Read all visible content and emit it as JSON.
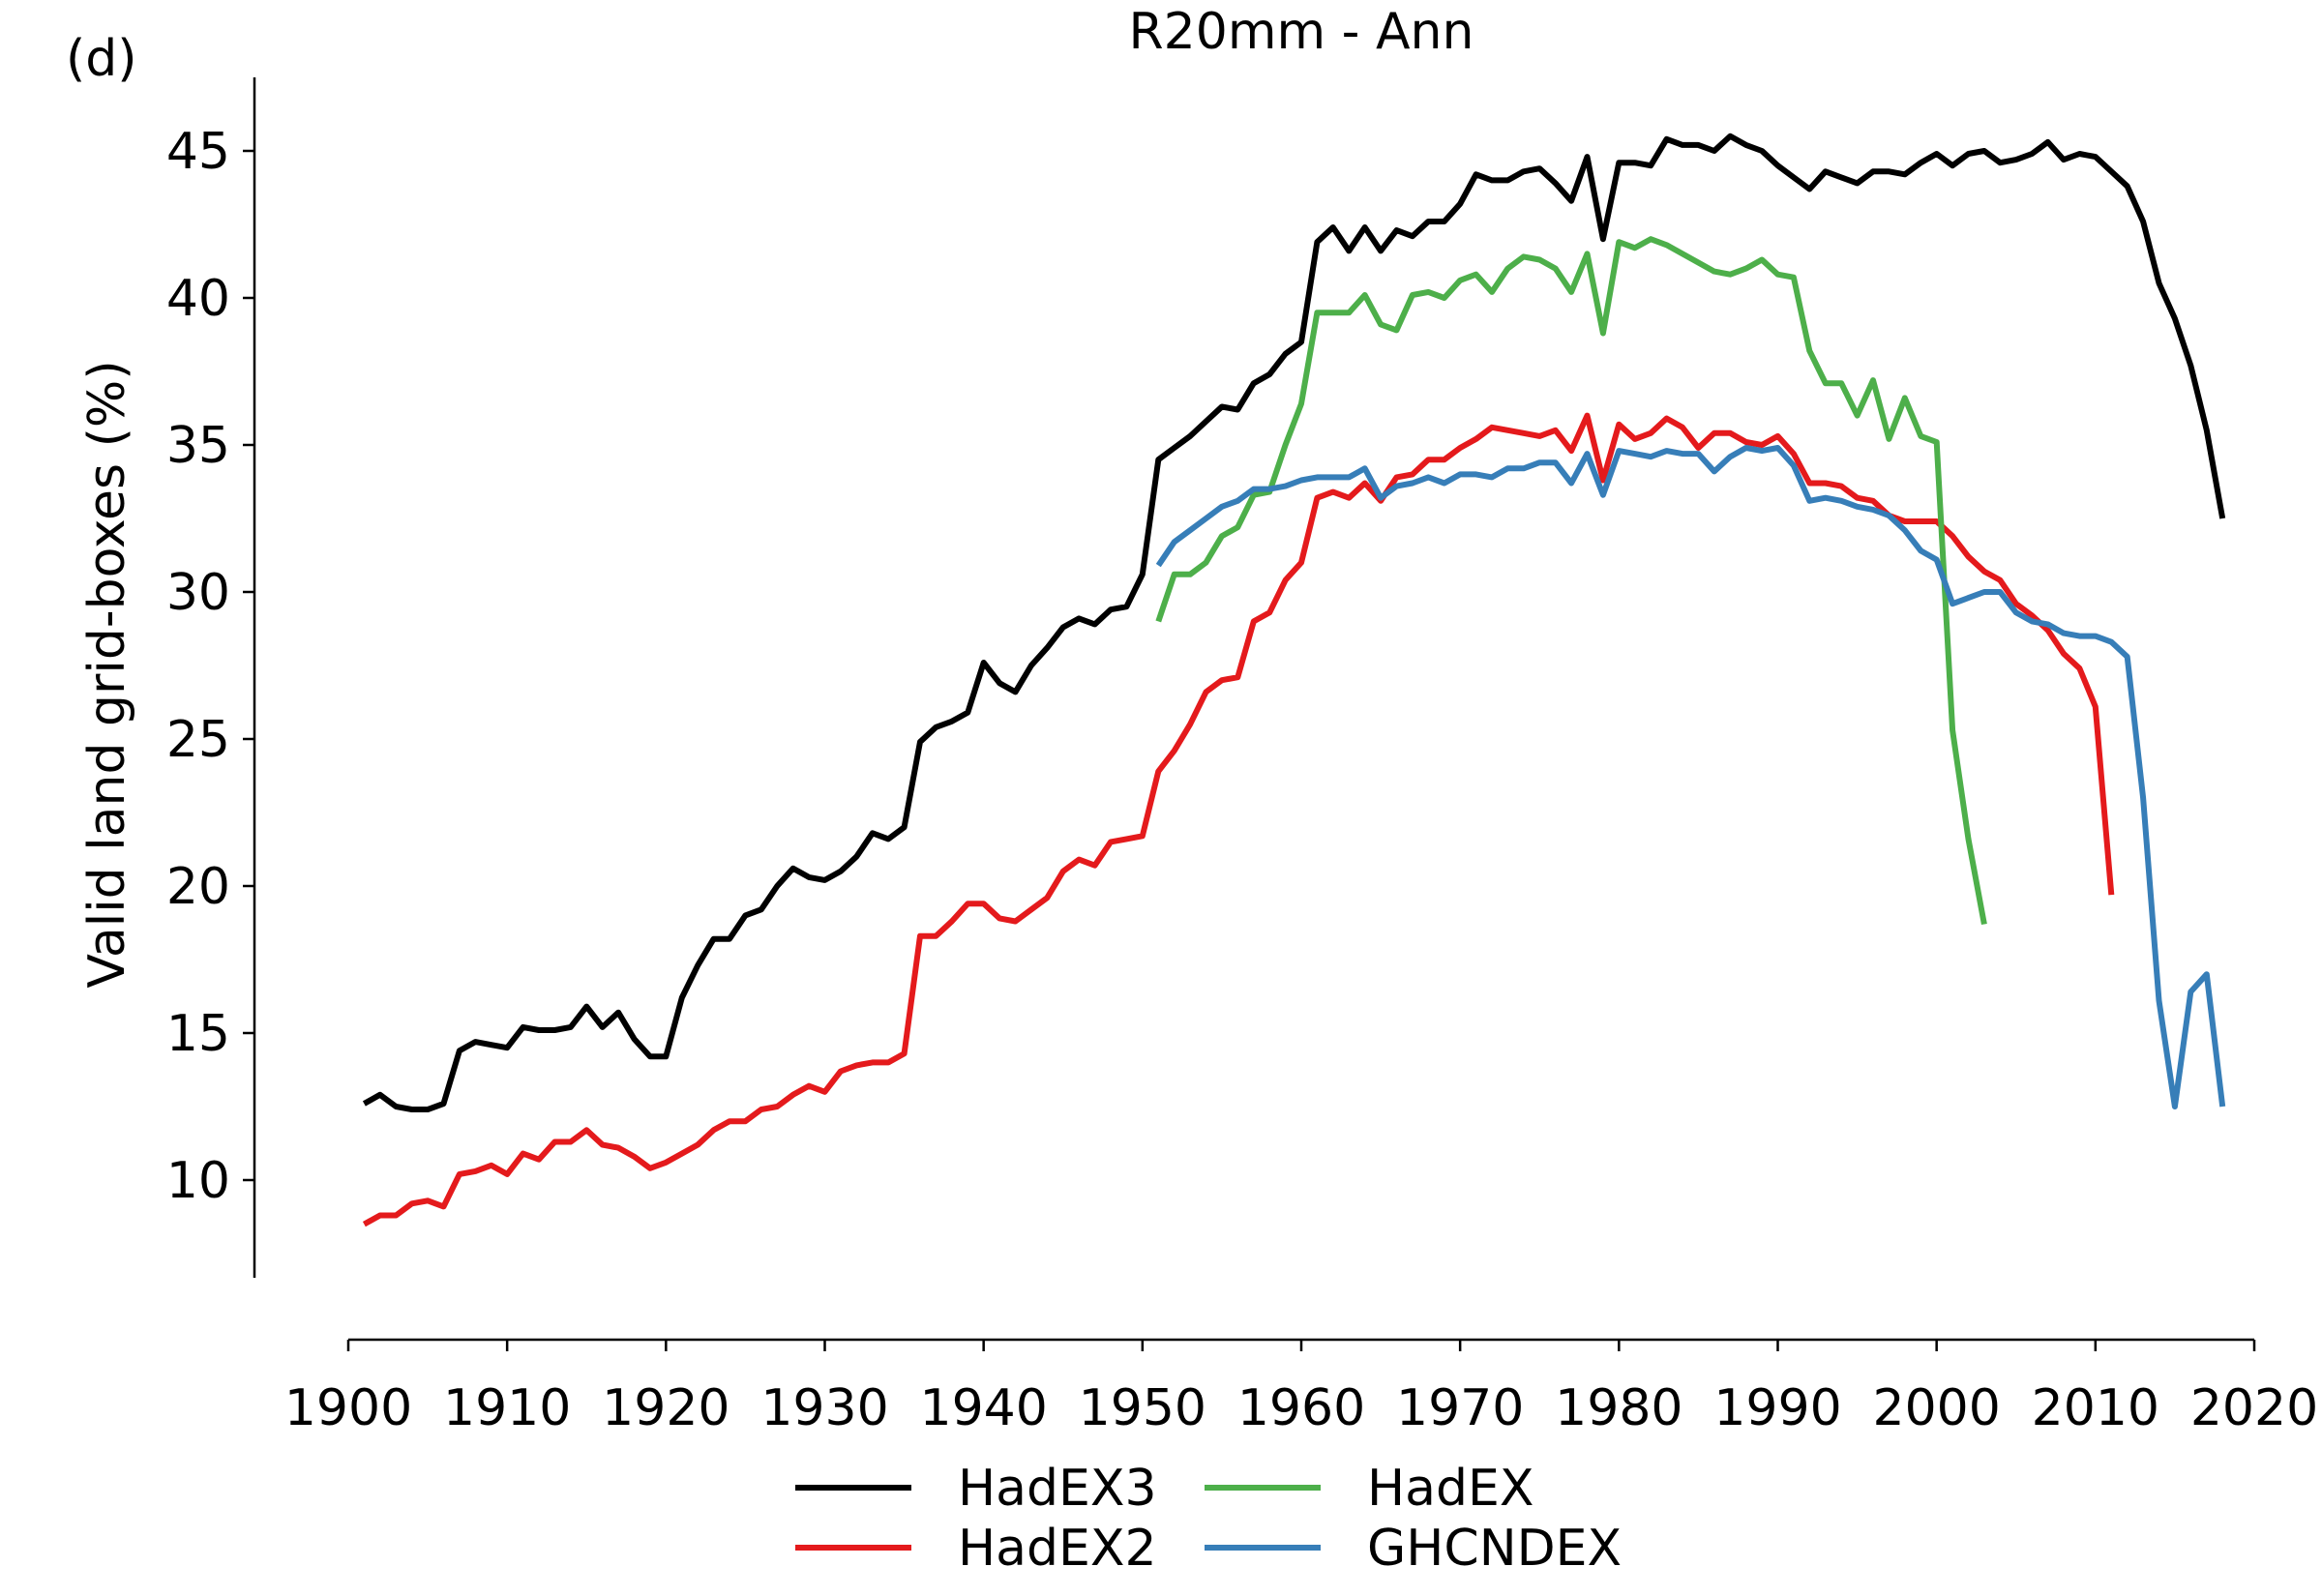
{
  "panel_label": "(d)",
  "chart_data": {
    "type": "line",
    "title": "R20mm - Ann",
    "xlabel": "",
    "ylabel": "Valid land grid-boxes (%)",
    "xlim": [
      1900,
      2020
    ],
    "ylim": [
      7,
      47
    ],
    "x_ticks": [
      1900,
      1910,
      1920,
      1930,
      1940,
      1950,
      1960,
      1970,
      1980,
      1990,
      2000,
      2010,
      2020
    ],
    "y_ticks": [
      10,
      15,
      20,
      25,
      30,
      35,
      40,
      45
    ],
    "grid": false,
    "legend_position": "bottom-center",
    "series": [
      {
        "name": "HadEX3",
        "color": "#000000",
        "x_start": 1901,
        "values": [
          12.6,
          12.9,
          12.5,
          12.4,
          12.4,
          12.6,
          14.4,
          14.7,
          14.6,
          14.5,
          15.2,
          15.1,
          15.1,
          15.2,
          15.9,
          15.2,
          15.7,
          14.8,
          14.2,
          14.2,
          16.2,
          17.3,
          18.2,
          18.2,
          19.0,
          19.2,
          20.0,
          20.6,
          20.3,
          20.2,
          20.5,
          21.0,
          21.8,
          21.6,
          22.0,
          24.9,
          25.4,
          25.6,
          25.9,
          27.6,
          26.9,
          26.6,
          27.5,
          28.1,
          28.8,
          29.1,
          28.9,
          29.4,
          29.5,
          30.6,
          34.5,
          34.9,
          35.3,
          35.8,
          36.3,
          36.2,
          37.1,
          37.4,
          38.1,
          38.5,
          41.9,
          42.4,
          41.6,
          42.4,
          41.6,
          42.3,
          42.1,
          42.6,
          42.6,
          43.2,
          44.2,
          44.0,
          44.0,
          44.3,
          44.4,
          43.9,
          43.3,
          44.8,
          42.0,
          44.6,
          44.6,
          44.5,
          45.4,
          45.2,
          45.2,
          45.0,
          45.5,
          45.2,
          45.0,
          44.5,
          44.1,
          43.7,
          44.3,
          44.1,
          43.9,
          44.3,
          44.3,
          44.2,
          44.6,
          44.9,
          44.5,
          44.9,
          45.0,
          44.6,
          44.7,
          44.9,
          45.3,
          44.7,
          44.9,
          44.8,
          44.3,
          43.8,
          42.6,
          40.5,
          39.3,
          37.7,
          35.5,
          32.5
        ]
      },
      {
        "name": "HadEX2",
        "color": "#e41a1c",
        "x_start": 1901,
        "values": [
          8.5,
          8.8,
          8.8,
          9.2,
          9.3,
          9.1,
          10.2,
          10.3,
          10.5,
          10.2,
          10.9,
          10.7,
          11.3,
          11.3,
          11.7,
          11.2,
          11.1,
          10.8,
          10.4,
          10.6,
          10.9,
          11.2,
          11.7,
          12.0,
          12.0,
          12.4,
          12.5,
          12.9,
          13.2,
          13.0,
          13.7,
          13.9,
          14.0,
          14.0,
          14.3,
          18.3,
          18.3,
          18.8,
          19.4,
          19.4,
          18.9,
          18.8,
          19.2,
          19.6,
          20.5,
          20.9,
          20.7,
          21.5,
          21.6,
          21.7,
          23.9,
          24.6,
          25.5,
          26.6,
          27.0,
          27.1,
          29.0,
          29.3,
          30.4,
          31.0,
          33.2,
          33.4,
          33.2,
          33.7,
          33.1,
          33.9,
          34.0,
          34.5,
          34.5,
          34.9,
          35.2,
          35.6,
          35.5,
          35.4,
          35.3,
          35.5,
          34.8,
          36.0,
          33.8,
          35.7,
          35.2,
          35.4,
          35.9,
          35.6,
          34.9,
          35.4,
          35.4,
          35.1,
          35.0,
          35.3,
          34.7,
          33.7,
          33.7,
          33.6,
          33.2,
          33.1,
          32.6,
          32.4,
          32.4,
          32.4,
          31.9,
          31.2,
          30.7,
          30.4,
          29.6,
          29.2,
          28.7,
          27.9,
          27.4,
          26.1,
          19.7
        ]
      },
      {
        "name": "HadEX",
        "color": "#4daf4a",
        "x_start": 1951,
        "values": [
          29.0,
          30.6,
          30.6,
          31.0,
          31.9,
          32.2,
          33.3,
          33.4,
          35.0,
          36.4,
          39.5,
          39.5,
          39.5,
          40.1,
          39.1,
          38.9,
          40.1,
          40.2,
          40.0,
          40.6,
          40.8,
          40.2,
          41.0,
          41.4,
          41.3,
          41.0,
          40.2,
          41.5,
          38.8,
          41.9,
          41.7,
          42.0,
          41.8,
          41.5,
          41.2,
          40.9,
          40.8,
          41.0,
          41.3,
          40.8,
          40.7,
          38.2,
          37.1,
          37.1,
          36.0,
          37.2,
          35.2,
          36.6,
          35.3,
          35.1,
          25.3,
          21.6,
          18.7
        ]
      },
      {
        "name": "GHCNDEX",
        "color": "#377eb8",
        "x_start": 1951,
        "values": [
          30.9,
          31.7,
          32.1,
          32.5,
          32.9,
          33.1,
          33.5,
          33.5,
          33.6,
          33.8,
          33.9,
          33.9,
          33.9,
          34.2,
          33.2,
          33.6,
          33.7,
          33.9,
          33.7,
          34.0,
          34.0,
          33.9,
          34.2,
          34.2,
          34.4,
          34.4,
          33.7,
          34.7,
          33.3,
          34.8,
          34.7,
          34.6,
          34.8,
          34.7,
          34.7,
          34.1,
          34.6,
          34.9,
          34.8,
          34.9,
          34.3,
          33.1,
          33.2,
          33.1,
          32.9,
          32.8,
          32.6,
          32.1,
          31.4,
          31.1,
          29.6,
          29.8,
          30.0,
          30.0,
          29.3,
          29.0,
          28.9,
          28.6,
          28.5,
          28.5,
          28.3,
          27.8,
          23.0,
          16.1,
          12.5,
          16.4,
          17.0,
          12.5
        ]
      }
    ]
  }
}
